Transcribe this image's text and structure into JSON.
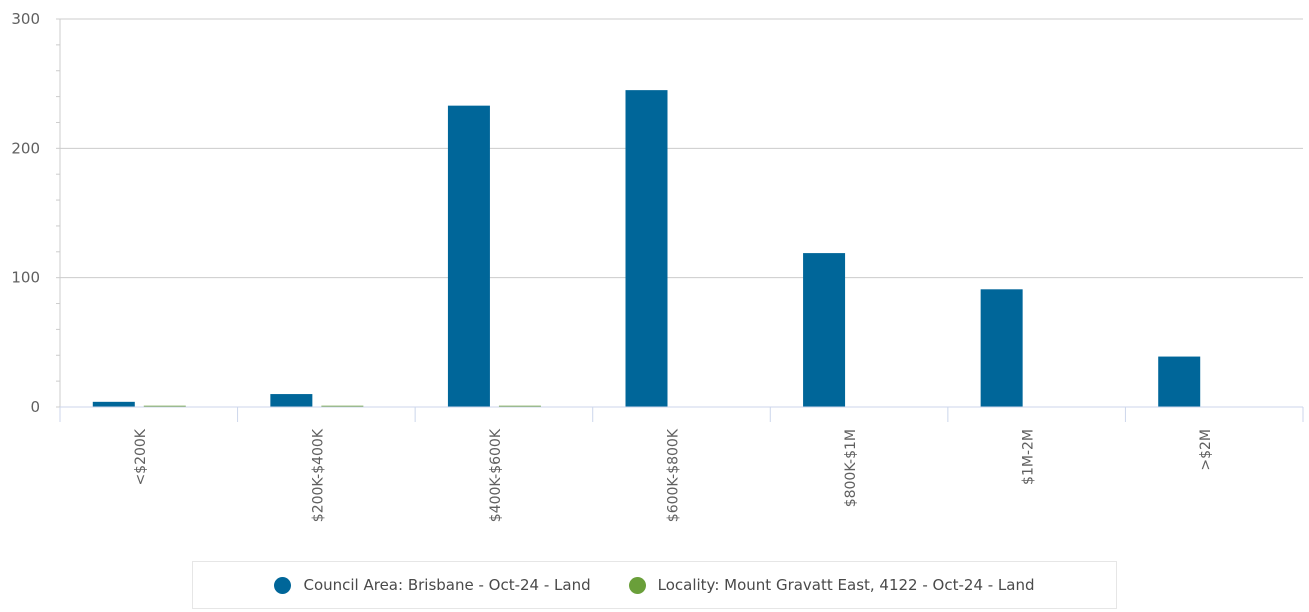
{
  "chart_data": {
    "type": "bar",
    "title": "",
    "xlabel": "",
    "ylabel": "",
    "ylim": [
      0,
      300
    ],
    "yticks": [
      0,
      100,
      200,
      300
    ],
    "grid": true,
    "legend_position": "bottom",
    "categories": [
      "<$200K",
      "$200K-$400K",
      "$400K-$600K",
      "$600K-$800K",
      "$800K-$1M",
      "$1M-2M",
      ">$2M"
    ],
    "series": [
      {
        "name": "Council Area: Brisbane - Oct-24 - Land",
        "color": "#006699",
        "values": [
          4,
          10,
          233,
          245,
          119,
          91,
          39
        ]
      },
      {
        "name": "Locality: Mount Gravatt East, 4122 - Oct-24 - Land",
        "color": "#6a9f3a",
        "values": [
          1,
          1,
          1,
          0,
          0,
          0,
          0
        ]
      }
    ]
  }
}
